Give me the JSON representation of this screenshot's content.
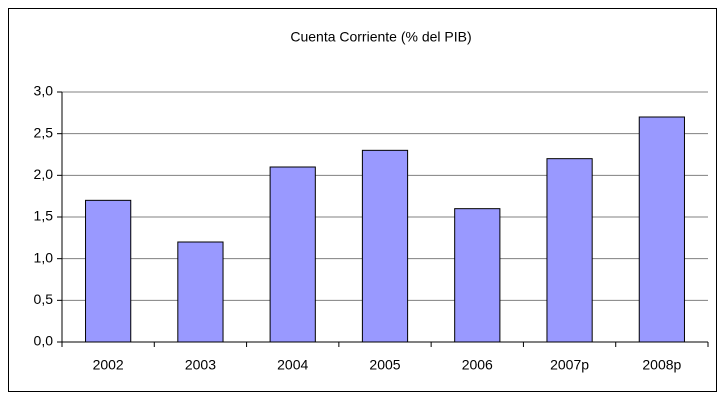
{
  "chart_data": {
    "type": "bar",
    "title": "Cuenta Corriente (% del PIB)",
    "categories": [
      "2002",
      "2003",
      "2004",
      "2005",
      "2006",
      "2007p",
      "2008p"
    ],
    "values": [
      1.7,
      1.2,
      2.1,
      2.3,
      1.6,
      2.2,
      2.7
    ],
    "color": "#9999ff",
    "ylim": [
      0,
      3
    ],
    "yticks": [
      {
        "value": 0,
        "label": "0,0"
      },
      {
        "value": 0.5,
        "label": "0,5"
      },
      {
        "value": 1,
        "label": "1,0"
      },
      {
        "value": 1.5,
        "label": "1,5"
      },
      {
        "value": 2,
        "label": "2,0"
      },
      {
        "value": 2.5,
        "label": "2,5"
      },
      {
        "value": 3,
        "label": "3,0"
      }
    ],
    "grid": true
  }
}
